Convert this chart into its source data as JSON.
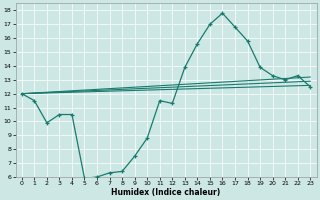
{
  "xlabel": "Humidex (Indice chaleur)",
  "bg_color": "#cde8e4",
  "line_color": "#1a7a6e",
  "xlim": [
    -0.5,
    23.5
  ],
  "ylim": [
    6,
    18.5
  ],
  "xticks": [
    0,
    1,
    2,
    3,
    4,
    5,
    6,
    7,
    8,
    9,
    10,
    11,
    12,
    13,
    14,
    15,
    16,
    17,
    18,
    19,
    20,
    21,
    22,
    23
  ],
  "yticks": [
    6,
    7,
    8,
    9,
    10,
    11,
    12,
    13,
    14,
    15,
    16,
    17,
    18
  ],
  "line1_x": [
    0,
    1,
    2,
    3,
    4,
    5,
    6,
    7,
    8,
    9,
    10,
    11,
    12,
    13,
    14,
    15,
    16,
    17,
    18,
    19,
    20,
    21,
    22,
    23
  ],
  "line1_y": [
    12.0,
    11.5,
    9.9,
    10.5,
    10.5,
    5.9,
    6.0,
    6.3,
    6.4,
    7.5,
    8.8,
    11.5,
    11.3,
    13.9,
    15.6,
    17.0,
    17.8,
    16.8,
    15.8,
    13.9,
    13.3,
    13.0,
    13.3,
    12.5
  ],
  "line2_x": [
    0,
    23
  ],
  "line2_y": [
    12.0,
    13.2
  ],
  "line3_x": [
    0,
    23
  ],
  "line3_y": [
    12.0,
    12.6
  ],
  "line4_x": [
    0,
    23
  ],
  "line4_y": [
    12.0,
    12.9
  ]
}
